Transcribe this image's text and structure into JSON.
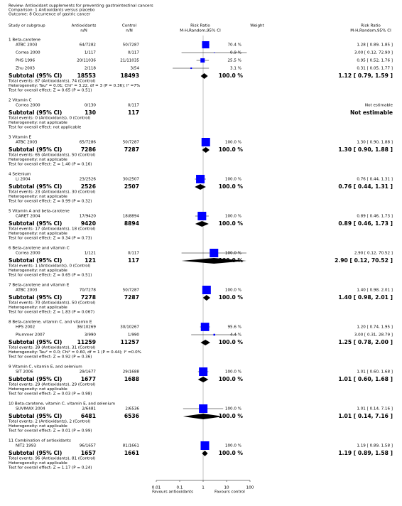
{
  "header": {
    "review": "Review:   Antioxidant supplements for preventing gastrointestinal cancers",
    "comparison": "Comparison:   1 Antioxidants versus placebo",
    "outcome": "Outcome:   8 Occurrence of gastric cancer"
  },
  "columns": {
    "study": "Study or subgroup",
    "antioxidants": "Antioxidants",
    "antioxidants_unit": "n/N",
    "control": "Control",
    "control_unit": "n/N",
    "plot": "Risk Ratio",
    "plot_method": "M-H,Random,95% CI",
    "weight": "Weight",
    "ratio": "Risk Ratio",
    "ratio_method": "M-H,Random,95% CI"
  },
  "forest": {
    "log": true,
    "xlim": [
      0.01,
      100
    ],
    "xticks": [
      0.01,
      0.1,
      1,
      10,
      100
    ],
    "reference_line": 1,
    "favours_left": "Favours antioxidants",
    "favours_right": "Favours control",
    "box_color": "#0000ff",
    "diamond_color": "#000000"
  },
  "groups": [
    {
      "title": "1 Beta-carotene",
      "studies": [
        {
          "name": "ATBC 2003",
          "antioxidants": "64/7282",
          "control": "50/7287",
          "weight": 70.4,
          "weight_label": "70.4 %",
          "rr": 1.28,
          "ci": [
            0.89,
            1.85
          ],
          "ci_label": "1.28 [ 0.89, 1.85 ]"
        },
        {
          "name": "Correa 2000",
          "antioxidants": "1/117",
          "control": "0/117",
          "weight": 0.9,
          "weight_label": "0.9 %",
          "rr": 3.0,
          "ci": [
            0.12,
            72.9
          ],
          "ci_label": "3.00 [ 0.12, 72.90 ]"
        },
        {
          "name": "PHS 1996",
          "antioxidants": "20/11036",
          "control": "21/11035",
          "weight": 25.5,
          "weight_label": "25.5 %",
          "rr": 0.95,
          "ci": [
            0.52,
            1.76
          ],
          "ci_label": "0.95 [ 0.52, 1.76 ]"
        },
        {
          "name": "Zhu 2003",
          "antioxidants": "2/118",
          "control": "3/54",
          "weight": 3.1,
          "weight_label": "3.1 %",
          "rr": 0.31,
          "ci": [
            0.05,
            1.77
          ],
          "ci_label": "0.31 [ 0.05, 1.77 ]"
        }
      ],
      "subtotal": {
        "label": "Subtotal (95% CI)",
        "antioxidants": 18553,
        "control": 18493,
        "weight_label": "100.0 %",
        "rr": 1.12,
        "ci": [
          0.79,
          1.59
        ],
        "ci_label": "1.12 [ 0.79, 1.59 ]"
      },
      "notes": [
        "Total events: 87 (Antioxidants), 74 (Control)",
        "Heterogeneity: Tau² = 0.01; Chi² = 3.22, df = 3 (P = 0.36); I² =7%",
        "Test for overall effect: Z = 0.65 (P = 0.51)"
      ]
    },
    {
      "title": "2 Vitamin C",
      "studies": [
        {
          "name": "Correa 2000",
          "antioxidants": "0/130",
          "control": "0/117",
          "ci_label": "Not estimable"
        }
      ],
      "subtotal": {
        "label": "Subtotal (95% CI)",
        "antioxidants": 130,
        "control": 117,
        "ci_label": "Not estimable"
      },
      "notes": [
        "Total events: 0 (Antioxidants), 0 (Control)",
        "Heterogeneity: not applicable",
        "Test for overall effect: not applicable"
      ]
    },
    {
      "title": "3 Vitamin E",
      "studies": [
        {
          "name": "ATBC 2003",
          "antioxidants": "65/7286",
          "control": "50/7287",
          "weight": 100.0,
          "weight_label": "100.0 %",
          "rr": 1.3,
          "ci": [
            0.9,
            1.88
          ],
          "ci_label": "1.30 [ 0.90, 1.88 ]"
        }
      ],
      "subtotal": {
        "label": "Subtotal (95% CI)",
        "antioxidants": 7286,
        "control": 7287,
        "weight_label": "100.0 %",
        "rr": 1.3,
        "ci": [
          0.9,
          1.88
        ],
        "ci_label": "1.30 [ 0.90, 1.88 ]"
      },
      "notes": [
        "Total events: 65 (Antioxidants), 50 (Control)",
        "Heterogeneity: not applicable",
        "Test for overall effect: Z = 1.40 (P = 0.16)"
      ]
    },
    {
      "title": "4 Selenium",
      "studies": [
        {
          "name": "Li 2004",
          "antioxidants": "23/2526",
          "control": "30/2507",
          "weight": 100.0,
          "weight_label": "100.0 %",
          "rr": 0.76,
          "ci": [
            0.44,
            1.31
          ],
          "ci_label": "0.76 [ 0.44, 1.31 ]"
        }
      ],
      "subtotal": {
        "label": "Subtotal (95% CI)",
        "antioxidants": 2526,
        "control": 2507,
        "weight_label": "100.0 %",
        "rr": 0.76,
        "ci": [
          0.44,
          1.31
        ],
        "ci_label": "0.76 [ 0.44, 1.31 ]"
      },
      "notes": [
        "Total events: 23 (Antioxidants), 30 (Control)",
        "Heterogeneity: not applicable",
        "Test for overall effect: Z = 0.99 (P = 0.32)"
      ]
    },
    {
      "title": "5 Vitamin A and beta-carotene",
      "studies": [
        {
          "name": "CARET 2004",
          "antioxidants": "17/9420",
          "control": "18/8894",
          "weight": 100.0,
          "weight_label": "100.0 %",
          "rr": 0.89,
          "ci": [
            0.46,
            1.73
          ],
          "ci_label": "0.89 [ 0.46, 1.73 ]"
        }
      ],
      "subtotal": {
        "label": "Subtotal (95% CI)",
        "antioxidants": 9420,
        "control": 8894,
        "weight_label": "100.0 %",
        "rr": 0.89,
        "ci": [
          0.46,
          1.73
        ],
        "ci_label": "0.89 [ 0.46, 1.73 ]"
      },
      "notes": [
        "Total events: 17 (Antioxidants), 18 (Control)",
        "Heterogeneity: not applicable",
        "Test for overall effect: Z = 0.34 (P = 0.73)"
      ]
    },
    {
      "title": "6 Beta-carotene and vitamin C",
      "studies": [
        {
          "name": "Correa 2000",
          "antioxidants": "1/121",
          "control": "0/117",
          "weight": 100.0,
          "weight_label": "100.0 %",
          "rr": 2.9,
          "ci": [
            0.12,
            70.52
          ],
          "ci_label": "2.90 [ 0.12, 70.52 ]"
        }
      ],
      "subtotal": {
        "label": "Subtotal (95% CI)",
        "antioxidants": 121,
        "control": 117,
        "weight_label": "100.0 %",
        "rr": 2.9,
        "ci": [
          0.12,
          70.52
        ],
        "ci_label": "2.90 [ 0.12, 70.52 ]"
      },
      "notes": [
        "Total events: 1 (Antioxidants), 0 (Control)",
        "Heterogeneity: not applicable",
        "Test for overall effect: Z = 0.65 (P = 0.51)"
      ]
    },
    {
      "title": "7 Beta-carotene and vitamin E",
      "studies": [
        {
          "name": "ATBC 2003",
          "antioxidants": "70/7278",
          "control": "50/7287",
          "weight": 100.0,
          "weight_label": "100.0 %",
          "rr": 1.4,
          "ci": [
            0.98,
            2.01
          ],
          "ci_label": "1.40 [ 0.98, 2.01 ]"
        }
      ],
      "subtotal": {
        "label": "Subtotal (95% CI)",
        "antioxidants": 7278,
        "control": 7287,
        "weight_label": "100.0 %",
        "rr": 1.4,
        "ci": [
          0.98,
          2.01
        ],
        "ci_label": "1.40 [ 0.98, 2.01 ]"
      },
      "notes": [
        "Total events: 70 (Antioxidants), 50 (Control)",
        "Heterogeneity: not applicable",
        "Test for overall effect: Z = 1.83 (P = 0.067)"
      ]
    },
    {
      "title": "8 Beta-carotene, vitamin C, and vitamin E",
      "studies": [
        {
          "name": "HPS 2002",
          "antioxidants": "36/10269",
          "control": "30/10267",
          "weight": 95.6,
          "weight_label": "95.6 %",
          "rr": 1.2,
          "ci": [
            0.74,
            1.95
          ],
          "ci_label": "1.20 [ 0.74, 1.95 ]"
        },
        {
          "name": "Plummer 2007",
          "antioxidants": "3/990",
          "control": "1/990",
          "weight": 4.4,
          "weight_label": "4.4 %",
          "rr": 3.0,
          "ci": [
            0.31,
            28.79
          ],
          "ci_label": "3.00 [ 0.31, 28.79 ]"
        }
      ],
      "subtotal": {
        "label": "Subtotal (95% CI)",
        "antioxidants": 11259,
        "control": 11257,
        "weight_label": "100.0 %",
        "rr": 1.25,
        "ci": [
          0.78,
          2.0
        ],
        "ci_label": "1.25 [ 0.78, 2.00 ]"
      },
      "notes": [
        "Total events: 39 (Antioxidants), 31 (Control)",
        "Heterogeneity: Tau² = 0.0; Chi² = 0.60, df = 1 (P = 0.44); I² =0.0%",
        "Test for overall effect: Z = 0.92 (P = 0.36)"
      ]
    },
    {
      "title": "9 Vitamin C, vitamin E, and selenium",
      "studies": [
        {
          "name": "SIT 2006",
          "antioxidants": "29/1677",
          "control": "29/1688",
          "weight": 100.0,
          "weight_label": "100.0 %",
          "rr": 1.01,
          "ci": [
            0.6,
            1.68
          ],
          "ci_label": "1.01 [ 0.60, 1.68 ]"
        }
      ],
      "subtotal": {
        "label": "Subtotal (95% CI)",
        "antioxidants": 1677,
        "control": 1688,
        "weight_label": "100.0 %",
        "rr": 1.01,
        "ci": [
          0.6,
          1.68
        ],
        "ci_label": "1.01 [ 0.60, 1.68 ]"
      },
      "notes": [
        "Total events: 29 (Antioxidants), 29 (Control)",
        "Heterogeneity: not applicable",
        "Test for overall effect: Z = 0.03 (P = 0.98)"
      ]
    },
    {
      "title": "10 Beta-carotene, vitamin C, vitamin E, and selenium",
      "studies": [
        {
          "name": "SUVIMAX 2004",
          "antioxidants": "2/6481",
          "control": "2/6536",
          "weight": 100.0,
          "weight_label": "100.0 %",
          "rr": 1.01,
          "ci": [
            0.14,
            7.16
          ],
          "ci_label": "1.01 [ 0.14, 7.16 ]"
        }
      ],
      "subtotal": {
        "label": "Subtotal (95% CI)",
        "antioxidants": 6481,
        "control": 6536,
        "weight_label": "100.0 %",
        "rr": 1.01,
        "ci": [
          0.14,
          7.16
        ],
        "ci_label": "1.01 [ 0.14, 7.16 ]"
      },
      "notes": [
        "Total events: 2 (Antioxidants), 2 (Control)",
        "Heterogeneity: not applicable",
        "Test for overall effect: Z = 0.01 (P = 0.99)"
      ]
    },
    {
      "title": "11 Combination of antioxidants",
      "studies": [
        {
          "name": "NIT2 1993",
          "antioxidants": "96/1657",
          "control": "81/1661",
          "weight": 100.0,
          "weight_label": "100.0 %",
          "rr": 1.19,
          "ci": [
            0.89,
            1.58
          ],
          "ci_label": "1.19 [ 0.89, 1.58 ]"
        }
      ],
      "subtotal": {
        "label": "Subtotal (95% CI)",
        "antioxidants": 1657,
        "control": 1661,
        "weight_label": "100.0 %",
        "rr": 1.19,
        "ci": [
          0.89,
          1.58
        ],
        "ci_label": "1.19 [ 0.89, 1.58 ]"
      },
      "notes": [
        "Total events: 96 (Antioxidants), 81 (Control)",
        "Heterogeneity: not applicable",
        "Test for overall effect: Z = 1.17 (P = 0.24)"
      ]
    }
  ]
}
